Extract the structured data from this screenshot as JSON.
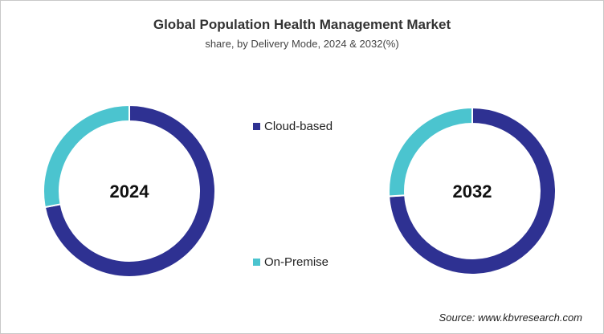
{
  "chart_data": {
    "type": "pie",
    "title": "Global Population  Health Management  Market",
    "subtitle": "share, by Delivery Mode, 2024 & 2032(%)",
    "legend": [
      "Cloud-based",
      "On-Premise"
    ],
    "legend_placement": "center",
    "colors": {
      "Cloud-based": "#2E3192",
      "On-Premise": "#4BC4CF"
    },
    "donuts": [
      {
        "label": "2024",
        "values": {
          "Cloud-based": 72,
          "On-Premise": 28
        }
      },
      {
        "label": "2032",
        "values": {
          "Cloud-based": 74,
          "On-Premise": 26
        }
      }
    ],
    "source": "Source: www.kbvresearch.com"
  }
}
